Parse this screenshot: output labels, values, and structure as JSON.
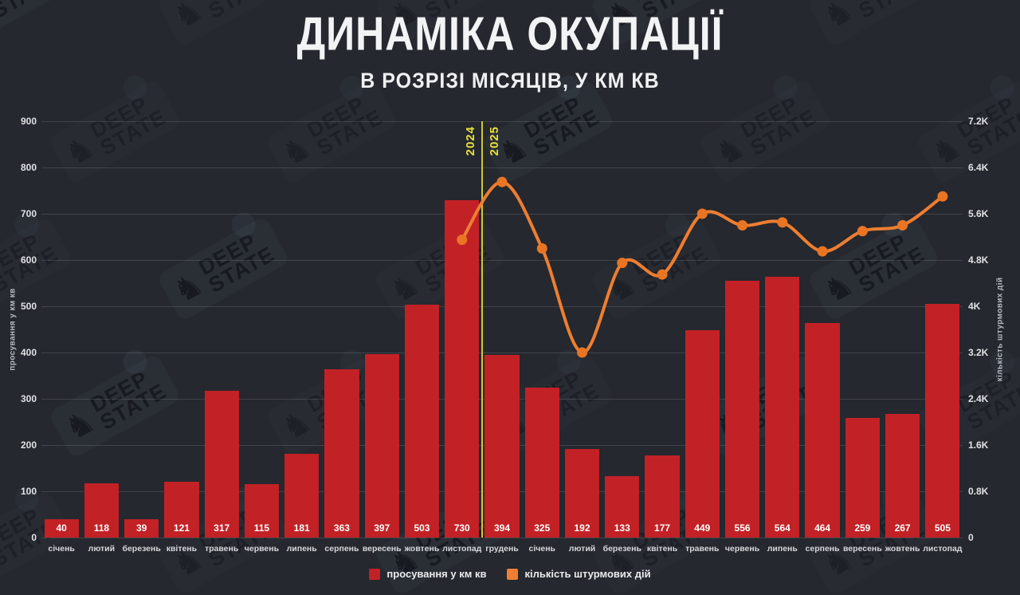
{
  "page": {
    "background": "#25282e"
  },
  "header": {
    "title": "ДИНАМІКА ОКУПАЦІЇ",
    "subtitle": "В РОЗРІЗІ МІСЯЦІВ, У КМ КВ"
  },
  "watermark": {
    "line1": "DEEP",
    "line2": "STATE",
    "knight": "♞"
  },
  "axes": {
    "left_title": "просування у км кв",
    "right_title": "кількість штурмових дій",
    "left_ticks": [
      "900",
      "800",
      "700",
      "600",
      "500",
      "400",
      "300",
      "200",
      "100",
      "0"
    ],
    "right_ticks": [
      "7.2K",
      "6.4K",
      "5.6K",
      "4.8K",
      "4K",
      "3.2K",
      "2.4K",
      "1.6K",
      "0.8K",
      "0"
    ]
  },
  "divider": {
    "left_year": "2024",
    "right_year": "2025",
    "boundary_index": 11,
    "line_color": "#d0c734",
    "label_color": "#e9e13c"
  },
  "legend": [
    {
      "label": "просування у км кв",
      "color": "#c22126"
    },
    {
      "label": "кількість штурмових дій",
      "color": "#ee7e31"
    }
  ],
  "chart_data": {
    "type": "bar+line",
    "title": "ДИНАМІКА ОКУПАЦІЇ",
    "subtitle": "В РОЗРІЗІ МІСЯЦІВ, У КМ КВ",
    "categories": [
      "січень",
      "лютий",
      "березень",
      "квітень",
      "травень",
      "червень",
      "липень",
      "серпень",
      "вересень",
      "жовтень",
      "листопад",
      "грудень",
      "січень",
      "лютий",
      "березень",
      "квітень",
      "травень",
      "червень",
      "липень",
      "серпень",
      "вересень",
      "жовтень",
      "листопад"
    ],
    "year_divider_between": [
      "листопад 2024",
      "грудень"
    ],
    "left_axis": {
      "label": "просування у км кв",
      "min": 0,
      "max": 900,
      "step": 100
    },
    "right_axis": {
      "label": "кількість штурмових дій",
      "min": 0,
      "max": 7200,
      "step": 800
    },
    "grid": true,
    "legend_position": "bottom",
    "series": [
      {
        "name": "просування у км кв",
        "type": "bar",
        "axis": "left",
        "color": "#c22126",
        "values": [
          40,
          118,
          39,
          121,
          317,
          115,
          181,
          363,
          397,
          503,
          730,
          394,
          325,
          192,
          133,
          177,
          449,
          556,
          564,
          464,
          259,
          267,
          505
        ]
      },
      {
        "name": "кількість штурмових дій",
        "type": "line",
        "axis": "right",
        "color": "#ee7e31",
        "values": [
          null,
          null,
          null,
          null,
          null,
          null,
          null,
          null,
          null,
          null,
          5150,
          6150,
          5000,
          3200,
          4750,
          4550,
          5600,
          5400,
          5450,
          4950,
          5300,
          5400,
          5900
        ]
      }
    ]
  }
}
